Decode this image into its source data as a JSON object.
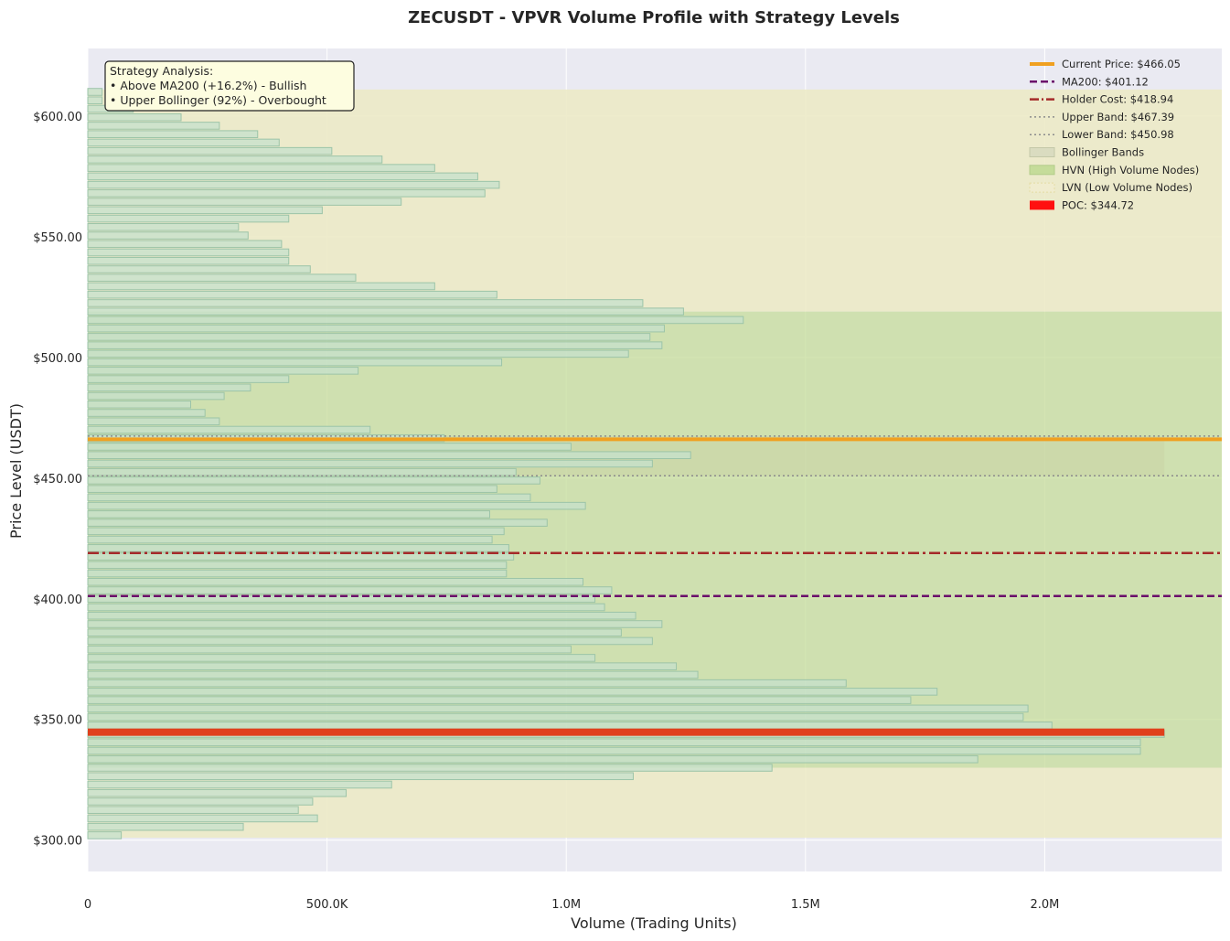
{
  "chart_data": {
    "type": "bar",
    "orientation": "horizontal",
    "title": "ZECUSDT - VPVR Volume Profile with Strategy Levels",
    "xlabel": "Volume (Trading Units)",
    "ylabel": "Price Level (USDT)",
    "xlim": [
      0,
      2370000
    ],
    "ylim": [
      287,
      628
    ],
    "x_ticks": [
      0,
      500000,
      1000000,
      1500000,
      2000000
    ],
    "x_tick_labels": [
      "0",
      "500.0K",
      "1.0M",
      "1.5M",
      "2.0M"
    ],
    "y_ticks": [
      300,
      350,
      400,
      450,
      500,
      550,
      600
    ],
    "y_tick_labels": [
      "$300.00",
      "$350.00",
      "$400.00",
      "$450.00",
      "$500.00",
      "$550.00",
      "$600.00"
    ],
    "grid": true,
    "legend_position": "top-right",
    "bin_prices": [
      302.0,
      305.5,
      309.0,
      312.5,
      316.0,
      319.5,
      323.0,
      326.5,
      330.0,
      333.5,
      337.0,
      340.5,
      344.0,
      347.5,
      351.0,
      354.5,
      358.0,
      361.5,
      365.0,
      368.5,
      372.0,
      375.5,
      379.0,
      382.5,
      386.0,
      389.5,
      393.0,
      396.5,
      400.0,
      403.5,
      407.0,
      410.5,
      414.0,
      417.5,
      421.0,
      424.5,
      428.0,
      431.5,
      435.0,
      438.5,
      442.0,
      445.5,
      449.0,
      452.5,
      456.0,
      459.5,
      463.0,
      466.5,
      470.0,
      473.5,
      477.0,
      480.5,
      484.0,
      487.5,
      491.0,
      494.5,
      498.0,
      501.5,
      505.0,
      508.5,
      512.0,
      515.5,
      519.0,
      522.5,
      526.0,
      529.5,
      533.0,
      536.5,
      540.0,
      543.5,
      547.0,
      550.5,
      554.0,
      557.5,
      561.0,
      564.5,
      568.0,
      571.5,
      575.0,
      578.5,
      582.0,
      585.5,
      589.0,
      592.5,
      596.0,
      599.5,
      603.0,
      606.5,
      610.0
    ],
    "bin_volumes": [
      70000,
      325000,
      480000,
      440000,
      470000,
      540000,
      635000,
      1140000,
      1430000,
      1860000,
      2200000,
      2200000,
      2250000,
      2015000,
      1955000,
      1965000,
      1720000,
      1775000,
      1585000,
      1275000,
      1230000,
      1060000,
      1010000,
      1180000,
      1115000,
      1200000,
      1145000,
      1080000,
      1060000,
      1095000,
      1035000,
      875000,
      875000,
      890000,
      880000,
      845000,
      870000,
      960000,
      840000,
      1040000,
      925000,
      855000,
      945000,
      895000,
      1180000,
      1260000,
      1010000,
      745000,
      590000,
      275000,
      245000,
      215000,
      285000,
      340000,
      420000,
      565000,
      865000,
      1130000,
      1200000,
      1175000,
      1205000,
      1370000,
      1245000,
      1160000,
      855000,
      725000,
      560000,
      465000,
      420000,
      420000,
      405000,
      335000,
      315000,
      420000,
      490000,
      655000,
      830000,
      860000,
      815000,
      725000,
      615000,
      510000,
      400000,
      355000,
      275000,
      195000,
      95000,
      30000,
      30000
    ],
    "hvn_zone": [
      330.0,
      519.0
    ],
    "bollinger_band": [
      450.98,
      467.39
    ],
    "lvn_zones": [
      [
        301.0,
        330.0
      ],
      [
        519.0,
        611.0
      ]
    ],
    "levels": {
      "current_price": 466.05,
      "ma200": 401.12,
      "holder_cost": 418.94,
      "upper_band": 467.39,
      "lower_band": 450.98,
      "poc": 344.72,
      "poc_volume": 2250000
    },
    "legend": [
      {
        "key": "current_price",
        "label": "Current Price: $466.05"
      },
      {
        "key": "ma200",
        "label": "MA200: $401.12"
      },
      {
        "key": "holder_cost",
        "label": "Holder Cost: $418.94"
      },
      {
        "key": "upper_band",
        "label": "Upper Band: $467.39"
      },
      {
        "key": "lower_band",
        "label": "Lower Band: $450.98"
      },
      {
        "key": "bollinger",
        "label": "Bollinger Bands"
      },
      {
        "key": "hvn",
        "label": "HVN (High Volume Nodes)"
      },
      {
        "key": "lvn",
        "label": "LVN (Low Volume Nodes)"
      },
      {
        "key": "poc",
        "label": "POC: $344.72"
      }
    ],
    "annotation": {
      "lines": [
        "Strategy Analysis:",
        "• Above MA200 (+16.2%) - Bullish",
        "• Upper Bollinger (92%) - Overbought"
      ]
    },
    "colors": {
      "plot_bg": "#eaeaf2",
      "bar_fill": "#c6e0cc",
      "bar_edge": "#9cc4a8",
      "hvn_fill": "#c5dc9a",
      "lvn_fill": "#eceac6",
      "bollinger_fill": "#c6caa0",
      "current_price": "#f0a020",
      "ma200": "#6b0f6b",
      "holder_cost": "#a52a2a",
      "band_line": "#8c8c8c",
      "poc": "#e0401c",
      "poc_legend": "#ff1010",
      "annot_bg": "#fdfde0"
    }
  }
}
